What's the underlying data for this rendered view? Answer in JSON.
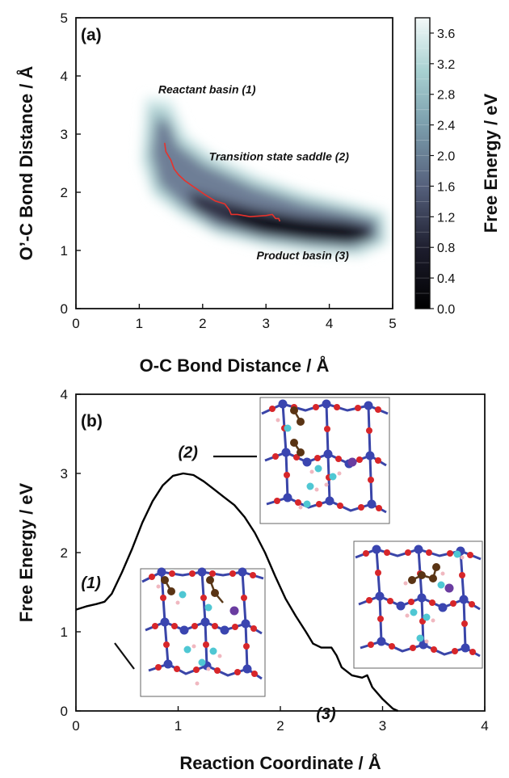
{
  "chart_data": [
    {
      "type": "heatmap",
      "panel_label": "(a)",
      "xlabel": "O-C Bond Distance / Å",
      "ylabel": "O’-C Bond Distance / Å",
      "xlim": [
        0,
        5
      ],
      "ylim": [
        0,
        5
      ],
      "xticks": [
        "0",
        "1",
        "2",
        "3",
        "4",
        "5"
      ],
      "yticks": [
        "0",
        "1",
        "2",
        "3",
        "4",
        "5"
      ],
      "colorbar": {
        "label": "Free Energy / eV",
        "range": [
          0,
          3.8
        ],
        "ticks": [
          "0.0",
          "0.4",
          "0.8",
          "1.2",
          "1.6",
          "2.0",
          "2.4",
          "2.8",
          "3.2",
          "3.6"
        ]
      },
      "annotations": [
        {
          "text": "Reactant basin (1)",
          "x": 1.3,
          "y": 3.7
        },
        {
          "text": "Transition state saddle (2)",
          "x": 2.1,
          "y": 2.55
        },
        {
          "text": "Product basin (3)",
          "x": 2.85,
          "y": 0.85
        }
      ],
      "path": {
        "x": [
          1.4,
          1.42,
          1.5,
          1.55,
          1.62,
          1.72,
          1.85,
          2.05,
          2.2,
          2.35,
          2.42,
          2.45,
          2.55,
          2.75,
          3.0,
          3.1,
          3.15,
          3.2,
          3.22
        ],
        "y": [
          2.85,
          2.7,
          2.55,
          2.4,
          2.3,
          2.2,
          2.1,
          1.95,
          1.85,
          1.8,
          1.7,
          1.62,
          1.62,
          1.58,
          1.6,
          1.62,
          1.55,
          1.55,
          1.5
        ]
      }
    },
    {
      "type": "line",
      "panel_label": "(b)",
      "xlabel": "Reaction Coordinate / Å",
      "ylabel": "Free Energy / eV",
      "xlim": [
        0,
        4
      ],
      "ylim": [
        0,
        4
      ],
      "xticks": [
        "0",
        "1",
        "2",
        "3",
        "4"
      ],
      "yticks": [
        "0",
        "1",
        "2",
        "3",
        "4"
      ],
      "x": [
        0,
        0.1,
        0.2,
        0.28,
        0.35,
        0.45,
        0.55,
        0.65,
        0.75,
        0.85,
        0.95,
        1.05,
        1.15,
        1.25,
        1.35,
        1.45,
        1.55,
        1.65,
        1.75,
        1.85,
        1.95,
        2.05,
        2.15,
        2.25,
        2.32,
        2.4,
        2.5,
        2.55,
        2.6,
        2.7,
        2.8,
        2.85,
        2.9,
        3.0,
        3.1,
        3.15
      ],
      "y": [
        1.28,
        1.32,
        1.35,
        1.38,
        1.48,
        1.75,
        2.05,
        2.38,
        2.65,
        2.85,
        2.97,
        3.0,
        2.98,
        2.9,
        2.8,
        2.7,
        2.6,
        2.45,
        2.25,
        2.0,
        1.7,
        1.42,
        1.2,
        1.0,
        0.85,
        0.8,
        0.8,
        0.7,
        0.55,
        0.45,
        0.42,
        0.45,
        0.3,
        0.15,
        0.03,
        0
      ],
      "state_labels": [
        {
          "text": "(1)",
          "x": 0.05,
          "y": 1.55
        },
        {
          "text": "(2)",
          "x": 1.0,
          "y": 3.2
        },
        {
          "text": "(3)",
          "x": 2.35,
          "y": -0.1
        }
      ]
    }
  ]
}
